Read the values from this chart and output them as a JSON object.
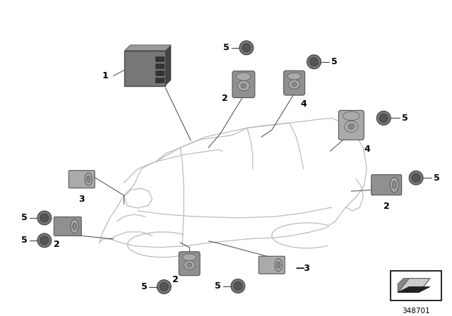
{
  "background_color": "#ffffff",
  "part_number": "348701",
  "car_outline_color": "#bbbbbb",
  "car_fill_color": "#f8f8f8",
  "part_gray_light": "#aaaaaa",
  "part_gray_mid": "#888888",
  "part_gray_dark": "#555555",
  "part_gray_darker": "#333333",
  "ecu_color": "#777777",
  "ecu_dark": "#444444",
  "ecu_top": "#999999",
  "sensor_body": "#909090",
  "sensor_face": "#aaaaaa",
  "sensor_dark": "#555555",
  "disc_color": "#777777",
  "disc_inner": "#555555",
  "line_color": "#444444",
  "label_font": 7.5,
  "label_bold_font": 9
}
